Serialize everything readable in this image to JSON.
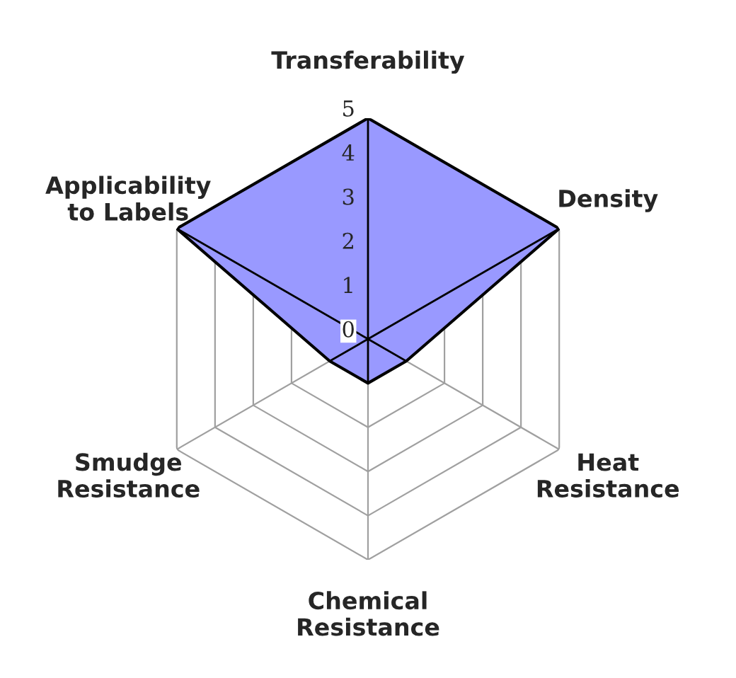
{
  "chart_data": {
    "type": "radar",
    "categories": [
      "Transferability",
      "Density",
      "Heat\nResistance",
      "Chemical\nResistance",
      "Smudge\nResistance",
      "Applicability\nto Labels"
    ],
    "series": [
      {
        "color": "#9999ff",
        "values": [
          5,
          5,
          1,
          1,
          1,
          5
        ]
      }
    ],
    "ylim": [
      0,
      5
    ],
    "yticks": [
      0,
      1,
      2,
      3,
      4,
      5
    ],
    "grid": true
  }
}
